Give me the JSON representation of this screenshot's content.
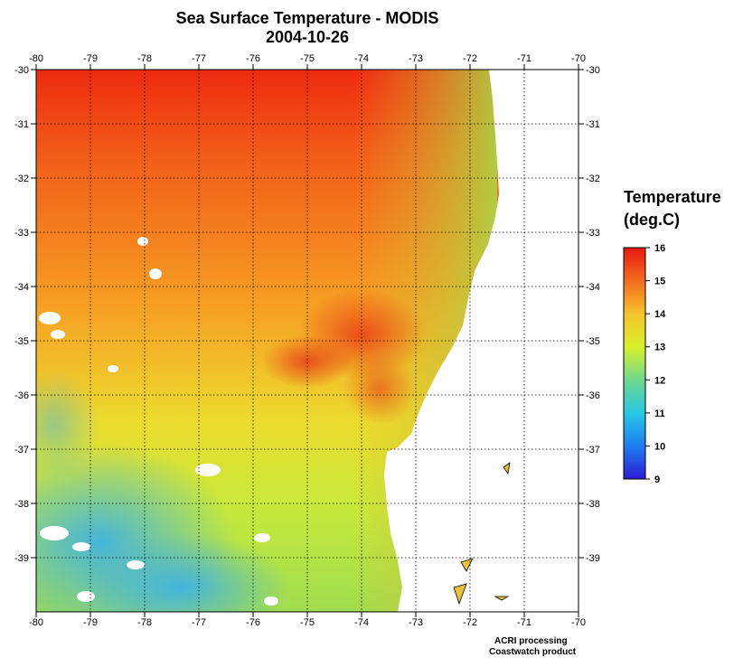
{
  "title": "Sea Surface Temperature - MODIS",
  "date": "2004-10-26",
  "map": {
    "lon_ticks": [
      "-80",
      "-79",
      "-78",
      "-77",
      "-76",
      "-75",
      "-74",
      "-73",
      "-72",
      "-71",
      "-70"
    ],
    "lat_ticks": [
      "-30",
      "-31",
      "-32",
      "-33",
      "-34",
      "-35",
      "-36",
      "-37",
      "-38",
      "-39"
    ],
    "lon_range": [
      -80,
      -70
    ],
    "lat_range": [
      -30,
      -40
    ],
    "grid_style": "dotted"
  },
  "legend": {
    "title_line1": "Temperature",
    "title_line2": "(deg.C)",
    "ticks": [
      "16",
      "15",
      "14",
      "13",
      "12",
      "11",
      "10",
      "9"
    ],
    "range": [
      9,
      16
    ],
    "colors": [
      "#2b1bd6",
      "#1e7bf0",
      "#27c6e8",
      "#6fd98c",
      "#d9f02c",
      "#f5c52a",
      "#f36a1d",
      "#e8180f"
    ]
  },
  "credits": {
    "line1": "ACRI processing",
    "line2": "Coastwatch product"
  }
}
